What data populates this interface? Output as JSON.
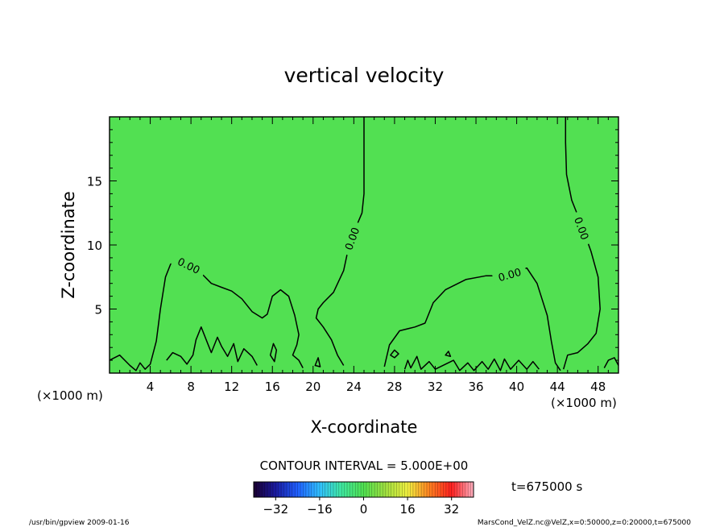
{
  "chart_data": {
    "type": "heatmap",
    "title": "vertical velocity",
    "xlabel": "X-coordinate",
    "ylabel": "Z-coordinate",
    "x_unit": "(×1000 m)",
    "x_unit_right": "(×1000 m)",
    "xlim": [
      0,
      50
    ],
    "ylim": [
      0,
      20
    ],
    "x_ticks": [
      4,
      8,
      12,
      16,
      20,
      24,
      28,
      32,
      36,
      40,
      44,
      48
    ],
    "y_ticks": [
      5,
      10,
      15
    ],
    "field_value": 0,
    "background_color": "#52e052",
    "contour_level_label": "0.00",
    "contour_interval_text": "CONTOUR INTERVAL = 5.000E+00",
    "time_label": "t=675000 s",
    "colorbar": {
      "range": [
        -40,
        40
      ],
      "ticks": [
        -32,
        -16,
        0,
        16,
        32
      ],
      "colors": [
        "#1a0030",
        "#1a1aa0",
        "#2060ff",
        "#30c0ff",
        "#40e8a0",
        "#50e050",
        "#a0e040",
        "#f0f040",
        "#ff8020",
        "#ff2020",
        "#ffb0c0"
      ]
    },
    "contours": [
      {
        "name": "left-region",
        "points": [
          [
            0,
            1
          ],
          [
            1,
            1.4
          ],
          [
            2,
            0.6
          ],
          [
            2.6,
            0.2
          ],
          [
            3,
            0.8
          ],
          [
            3.5,
            0.3
          ],
          [
            4,
            0.7
          ],
          [
            4.6,
            2.5
          ],
          [
            5,
            5
          ],
          [
            5.5,
            7.5
          ],
          [
            6,
            8.5
          ],
          [
            7,
            9.0
          ],
          [
            8,
            8.6
          ],
          [
            9,
            7.8
          ],
          [
            10,
            7.0
          ],
          [
            11,
            6.7
          ],
          [
            12,
            6.4
          ],
          [
            13,
            5.8
          ],
          [
            14,
            4.8
          ],
          [
            15,
            4.3
          ],
          [
            15.5,
            4.6
          ],
          [
            16,
            6.0
          ],
          [
            16.8,
            6.5
          ],
          [
            17.6,
            6.0
          ],
          [
            18.2,
            4.5
          ],
          [
            18.6,
            3.0
          ],
          [
            18.4,
            2.2
          ],
          [
            18,
            1.4
          ],
          [
            18.6,
            1.0
          ],
          [
            19,
            0.4
          ]
        ]
      },
      {
        "name": "inner-left",
        "points": [
          [
            5.6,
            1.0
          ],
          [
            6.2,
            1.6
          ],
          [
            7,
            1.3
          ],
          [
            7.6,
            0.7
          ],
          [
            8.2,
            1.4
          ],
          [
            8.5,
            2.6
          ],
          [
            9,
            3.6
          ],
          [
            9.6,
            2.4
          ],
          [
            10,
            1.6
          ],
          [
            10.6,
            2.8
          ],
          [
            11,
            2.1
          ],
          [
            11.6,
            1.3
          ],
          [
            12.2,
            2.3
          ],
          [
            12.6,
            0.9
          ],
          [
            13.2,
            1.9
          ],
          [
            14,
            1.3
          ],
          [
            14.5,
            0.6
          ]
        ]
      },
      {
        "name": "center-column",
        "points": [
          [
            25,
            20
          ],
          [
            25,
            17
          ],
          [
            25,
            14
          ],
          [
            24.8,
            12.5
          ],
          [
            24,
            11
          ],
          [
            23.4,
            9.5
          ],
          [
            23,
            8
          ],
          [
            22,
            6.3
          ],
          [
            21,
            5.5
          ],
          [
            20.5,
            5.0
          ],
          [
            20.3,
            4.3
          ],
          [
            21,
            3.6
          ],
          [
            21.8,
            2.6
          ],
          [
            22.4,
            1.4
          ],
          [
            23,
            0.6
          ]
        ]
      },
      {
        "name": "right-region",
        "points": [
          [
            27,
            0.5
          ],
          [
            27.5,
            2.2
          ],
          [
            28.5,
            3.3
          ],
          [
            30,
            3.6
          ],
          [
            31,
            3.9
          ],
          [
            31.8,
            5.5
          ],
          [
            33,
            6.5
          ],
          [
            35,
            7.3
          ],
          [
            37,
            7.6
          ],
          [
            38.5,
            7.6
          ],
          [
            40,
            7.9
          ],
          [
            41,
            8.2
          ],
          [
            42,
            7.0
          ],
          [
            43,
            4.5
          ],
          [
            43.4,
            2.5
          ],
          [
            43.8,
            0.8
          ],
          [
            44.3,
            0.2
          ]
        ]
      },
      {
        "name": "far-right",
        "points": [
          [
            44.6,
            0.3
          ],
          [
            45,
            1.4
          ],
          [
            46,
            1.6
          ],
          [
            47,
            2.3
          ],
          [
            47.8,
            3.1
          ],
          [
            48.2,
            5.0
          ],
          [
            48.0,
            7.5
          ],
          [
            47.3,
            9.5
          ],
          [
            46.4,
            11.5
          ],
          [
            45.4,
            13.5
          ],
          [
            44.9,
            15.5
          ],
          [
            44.8,
            18
          ],
          [
            44.8,
            20
          ]
        ]
      },
      {
        "name": "edge-right",
        "points": [
          [
            48.6,
            0.4
          ],
          [
            49,
            1.0
          ],
          [
            49.6,
            1.2
          ],
          [
            50,
            0.6
          ]
        ]
      },
      {
        "name": "closed-16",
        "closed": true,
        "points": [
          [
            15.8,
            1.4
          ],
          [
            16.1,
            2.3
          ],
          [
            16.4,
            1.8
          ],
          [
            16.2,
            0.9
          ]
        ]
      },
      {
        "name": "blob-a",
        "closed": true,
        "points": [
          [
            20.2,
            0.6
          ],
          [
            20.5,
            1.2
          ],
          [
            20.7,
            0.5
          ]
        ]
      },
      {
        "name": "blob-b",
        "closed": true,
        "points": [
          [
            27.6,
            1.4
          ],
          [
            28.0,
            1.8
          ],
          [
            28.4,
            1.5
          ],
          [
            28.0,
            1.2
          ]
        ]
      },
      {
        "name": "blob-c",
        "closed": true,
        "points": [
          [
            33.0,
            1.4
          ],
          [
            33.3,
            1.7
          ],
          [
            33.5,
            1.3
          ]
        ]
      },
      {
        "name": "spikes",
        "points": [
          [
            29,
            0.3
          ],
          [
            29.3,
            1.0
          ],
          [
            29.6,
            0.4
          ],
          [
            30.2,
            1.3
          ],
          [
            30.6,
            0.3
          ],
          [
            31.4,
            0.9
          ],
          [
            32,
            0.3
          ],
          [
            33.8,
            1.0
          ],
          [
            34.4,
            0.2
          ],
          [
            35.2,
            0.8
          ],
          [
            35.8,
            0.2
          ],
          [
            36.6,
            0.9
          ],
          [
            37.2,
            0.3
          ],
          [
            37.8,
            1.1
          ],
          [
            38.4,
            0.2
          ],
          [
            38.8,
            1.1
          ],
          [
            39.4,
            0.3
          ],
          [
            40.2,
            1.0
          ],
          [
            41,
            0.3
          ],
          [
            41.6,
            0.9
          ],
          [
            42.2,
            0.3
          ]
        ]
      }
    ],
    "contour_labels": [
      {
        "x": 7.8,
        "y": 8.4,
        "angle": 26
      },
      {
        "x": 23.8,
        "y": 10.5,
        "angle": -70
      },
      {
        "x": 39.3,
        "y": 7.7,
        "angle": -16
      },
      {
        "x": 46.4,
        "y": 11.3,
        "angle": 70
      }
    ]
  },
  "footer": {
    "left": "/usr/bin/gpview   2009-01-16",
    "right": "MarsCond_VelZ.nc@VelZ,x=0:50000,z=0:20000,t=675000"
  }
}
